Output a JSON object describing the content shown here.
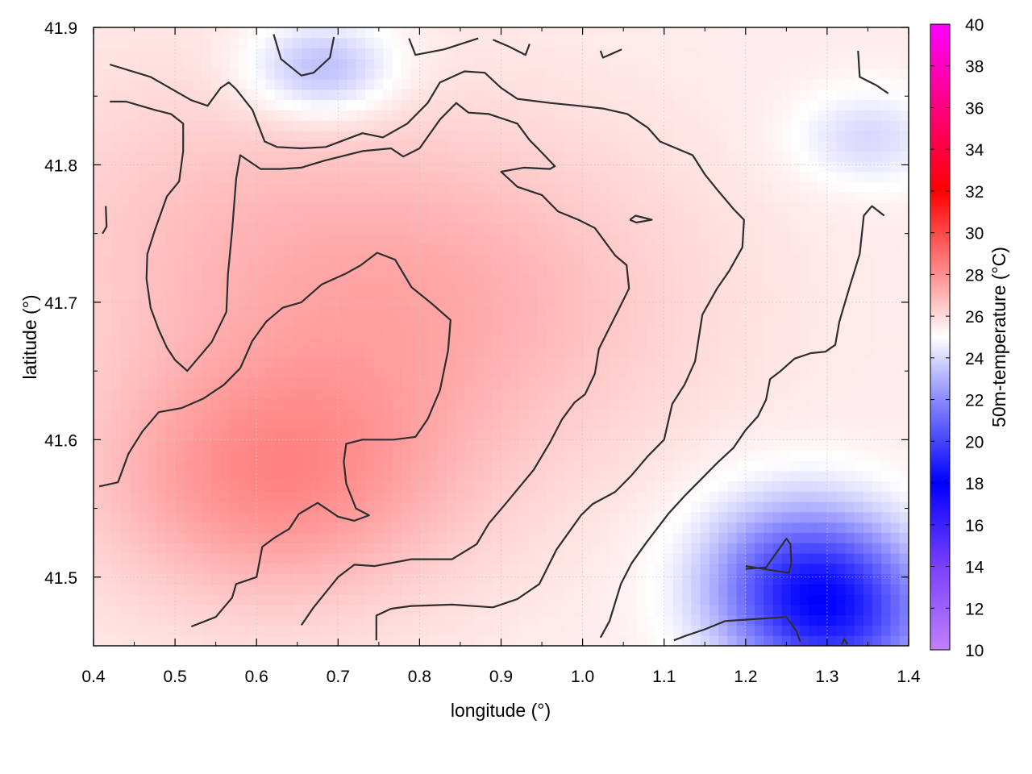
{
  "chart_data": {
    "type": "heatmap",
    "title": "",
    "xlabel": "longitude (°)",
    "ylabel": "latitude (°)",
    "colorbar_label": "50m-temperature (°C)",
    "xlim": [
      0.4,
      1.4
    ],
    "ylim": [
      41.45,
      41.9
    ],
    "x_ticks": [
      "0.4",
      "0.5",
      "0.6",
      "0.7",
      "0.8",
      "0.9",
      "1.0",
      "1.1",
      "1.2",
      "1.3",
      "1.4"
    ],
    "y_ticks": [
      "41.5",
      "41.6",
      "41.7",
      "41.8",
      "41.9"
    ],
    "colorbar_range": [
      10,
      40
    ],
    "colorbar_ticks": [
      "10",
      "12",
      "14",
      "16",
      "18",
      "20",
      "22",
      "24",
      "26",
      "28",
      "30",
      "32",
      "34",
      "36",
      "38",
      "40"
    ],
    "colormap": [
      {
        "value": 10,
        "color": "#c080ff"
      },
      {
        "value": 14,
        "color": "#7a40ff"
      },
      {
        "value": 18,
        "color": "#0000ff"
      },
      {
        "value": 22,
        "color": "#8a8aff"
      },
      {
        "value": 25,
        "color": "#ffffff"
      },
      {
        "value": 28,
        "color": "#ff9090"
      },
      {
        "value": 32,
        "color": "#ff0000"
      },
      {
        "value": 36,
        "color": "#ff0080"
      },
      {
        "value": 40,
        "color": "#ff00ff"
      }
    ],
    "grid": true,
    "field_summary": {
      "background_temperature": 25.5,
      "warm_core": {
        "lon": 0.62,
        "lat": 41.57,
        "temperature": 28.0
      },
      "warm_areas": [
        {
          "lon": 0.85,
          "lat": 41.7,
          "temperature": 27.0
        },
        {
          "lon": 0.55,
          "lat": 41.75,
          "temperature": 26.5
        }
      ],
      "cool_areas": [
        {
          "lon": 1.26,
          "lat": 41.5,
          "temperature": 21.5
        },
        {
          "lon": 1.32,
          "lat": 41.47,
          "temperature": 21.0
        },
        {
          "lon": 0.68,
          "lat": 41.87,
          "temperature": 23.0
        },
        {
          "lon": 1.35,
          "lat": 41.82,
          "temperature": 24.0
        }
      ]
    },
    "contours": [
      [
        [
          0.42,
          41.873
        ],
        [
          0.47,
          41.864
        ],
        [
          0.52,
          41.847
        ],
        [
          0.54,
          41.843
        ],
        [
          0.556,
          41.856
        ],
        [
          0.566,
          41.86
        ],
        [
          0.575,
          41.855
        ],
        [
          0.595,
          41.84
        ],
        [
          0.61,
          41.817
        ],
        [
          0.625,
          41.813
        ],
        [
          0.655,
          41.812
        ],
        [
          0.685,
          41.813
        ],
        [
          0.73,
          41.823
        ],
        [
          0.755,
          41.82
        ],
        [
          0.785,
          41.83
        ],
        [
          0.81,
          41.845
        ],
        [
          0.825,
          41.86
        ],
        [
          0.855,
          41.868
        ],
        [
          0.88,
          41.867
        ],
        [
          0.9,
          41.856
        ],
        [
          0.92,
          41.848
        ],
        [
          0.96,
          41.845
        ],
        [
          0.995,
          41.843
        ],
        [
          1.025,
          41.841
        ],
        [
          1.055,
          41.837
        ],
        [
          1.08,
          41.827
        ],
        [
          1.095,
          41.817
        ],
        [
          1.115,
          41.812
        ],
        [
          1.135,
          41.807
        ],
        [
          1.15,
          41.793
        ],
        [
          1.165,
          41.782
        ],
        [
          1.185,
          41.768
        ],
        [
          1.198,
          41.76
        ],
        [
          1.196,
          41.74
        ],
        [
          1.18,
          41.723
        ],
        [
          1.165,
          41.71
        ],
        [
          1.147,
          41.691
        ],
        [
          1.138,
          41.657
        ],
        [
          1.125,
          41.64
        ],
        [
          1.11,
          41.626
        ],
        [
          1.1,
          41.6
        ],
        [
          1.08,
          41.588
        ],
        [
          1.06,
          41.574
        ],
        [
          1.04,
          41.562
        ],
        [
          1.012,
          41.553
        ],
        [
          0.998,
          41.545
        ],
        [
          0.968,
          41.52
        ],
        [
          0.947,
          41.495
        ],
        [
          0.92,
          41.484
        ],
        [
          0.89,
          41.478
        ],
        [
          0.84,
          41.48
        ],
        [
          0.79,
          41.479
        ],
        [
          0.765,
          41.477
        ],
        [
          0.747,
          41.472
        ],
        [
          0.747,
          41.454
        ]
      ],
      [
        [
          0.407,
          41.566
        ],
        [
          0.43,
          41.569
        ],
        [
          0.443,
          41.59
        ],
        [
          0.46,
          41.606
        ],
        [
          0.48,
          41.62
        ],
        [
          0.508,
          41.623
        ],
        [
          0.535,
          41.63
        ],
        [
          0.56,
          41.64
        ],
        [
          0.58,
          41.652
        ],
        [
          0.595,
          41.672
        ],
        [
          0.612,
          41.686
        ],
        [
          0.632,
          41.696
        ],
        [
          0.655,
          41.7
        ],
        [
          0.68,
          41.713
        ],
        [
          0.71,
          41.721
        ],
        [
          0.728,
          41.727
        ],
        [
          0.748,
          41.736
        ],
        [
          0.77,
          41.731
        ],
        [
          0.79,
          41.711
        ],
        [
          0.815,
          41.699
        ],
        [
          0.838,
          41.687
        ],
        [
          0.835,
          41.665
        ],
        [
          0.825,
          41.636
        ],
        [
          0.81,
          41.615
        ],
        [
          0.795,
          41.602
        ],
        [
          0.768,
          41.6
        ],
        [
          0.73,
          41.6
        ],
        [
          0.71,
          41.597
        ],
        [
          0.707,
          41.584
        ],
        [
          0.71,
          41.568
        ],
        [
          0.722,
          41.55
        ],
        [
          0.738,
          41.545
        ],
        [
          0.72,
          41.541
        ],
        [
          0.7,
          41.544
        ],
        [
          0.675,
          41.554
        ],
        [
          0.652,
          41.546
        ],
        [
          0.64,
          41.535
        ],
        [
          0.623,
          41.529
        ],
        [
          0.607,
          41.522
        ],
        [
          0.6,
          41.5
        ],
        [
          0.575,
          41.495
        ],
        [
          0.57,
          41.485
        ],
        [
          0.55,
          41.471
        ],
        [
          0.52,
          41.464
        ]
      ],
      [
        [
          0.655,
          41.465
        ],
        [
          0.67,
          41.478
        ],
        [
          0.7,
          41.5
        ],
        [
          0.72,
          41.509
        ],
        [
          0.745,
          41.508
        ],
        [
          0.79,
          41.513
        ],
        [
          0.84,
          41.513
        ],
        [
          0.87,
          41.524
        ],
        [
          0.885,
          41.539
        ],
        [
          0.905,
          41.553
        ],
        [
          0.94,
          41.578
        ],
        [
          0.96,
          41.598
        ],
        [
          0.975,
          41.615
        ],
        [
          0.99,
          41.627
        ],
        [
          1.003,
          41.633
        ],
        [
          1.015,
          41.648
        ],
        [
          1.02,
          41.666
        ],
        [
          1.047,
          41.698
        ],
        [
          1.057,
          41.71
        ],
        [
          1.054,
          41.727
        ],
        [
          1.04,
          41.734
        ],
        [
          1.015,
          41.754
        ],
        [
          0.995,
          41.76
        ],
        [
          0.97,
          41.766
        ],
        [
          0.95,
          41.778
        ],
        [
          0.92,
          41.784
        ],
        [
          0.9,
          41.795
        ],
        [
          0.928,
          41.798
        ],
        [
          0.96,
          41.797
        ],
        [
          0.966,
          41.799
        ],
        [
          0.945,
          41.812
        ],
        [
          0.935,
          41.818
        ],
        [
          0.92,
          41.83
        ],
        [
          0.885,
          41.837
        ],
        [
          0.86,
          41.838
        ],
        [
          0.845,
          41.845
        ],
        [
          0.825,
          41.833
        ],
        [
          0.8,
          41.812
        ],
        [
          0.78,
          41.806
        ],
        [
          0.765,
          41.812
        ],
        [
          0.73,
          41.81
        ],
        [
          0.683,
          41.803
        ],
        [
          0.655,
          41.798
        ],
        [
          0.63,
          41.797
        ],
        [
          0.605,
          41.797
        ],
        [
          0.58,
          41.807
        ],
        [
          0.575,
          41.79
        ],
        [
          0.57,
          41.752
        ],
        [
          0.565,
          41.721
        ],
        [
          0.563,
          41.693
        ],
        [
          0.545,
          41.671
        ],
        [
          0.515,
          41.65
        ],
        [
          0.5,
          41.658
        ],
        [
          0.49,
          41.667
        ],
        [
          0.48,
          41.68
        ],
        [
          0.47,
          41.696
        ],
        [
          0.465,
          41.717
        ],
        [
          0.466,
          41.735
        ],
        [
          0.475,
          41.752
        ],
        [
          0.49,
          41.777
        ],
        [
          0.505,
          41.788
        ],
        [
          0.51,
          41.81
        ],
        [
          0.51,
          41.83
        ],
        [
          0.495,
          41.837
        ],
        [
          0.475,
          41.84
        ],
        [
          0.44,
          41.846
        ],
        [
          0.42,
          41.846
        ]
      ],
      [
        [
          1.022,
          41.456
        ],
        [
          1.033,
          41.468
        ],
        [
          1.047,
          41.495
        ],
        [
          1.06,
          41.51
        ],
        [
          1.078,
          41.525
        ],
        [
          1.105,
          41.546
        ],
        [
          1.125,
          41.559
        ],
        [
          1.145,
          41.571
        ],
        [
          1.165,
          41.583
        ],
        [
          1.185,
          41.594
        ],
        [
          1.2,
          41.607
        ],
        [
          1.215,
          41.617
        ],
        [
          1.225,
          41.629
        ],
        [
          1.23,
          41.644
        ],
        [
          1.243,
          41.65
        ],
        [
          1.26,
          41.659
        ],
        [
          1.28,
          41.663
        ],
        [
          1.298,
          41.664
        ],
        [
          1.31,
          41.669
        ],
        [
          1.315,
          41.686
        ],
        [
          1.328,
          41.712
        ],
        [
          1.34,
          41.735
        ],
        [
          1.345,
          41.763
        ],
        [
          1.355,
          41.77
        ],
        [
          1.37,
          41.763
        ]
      ],
      [
        [
          0.621,
          41.895
        ],
        [
          0.63,
          41.877
        ],
        [
          0.655,
          41.865
        ],
        [
          0.67,
          41.867
        ],
        [
          0.69,
          41.878
        ],
        [
          0.695,
          41.893
        ]
      ],
      [
        [
          0.787,
          41.892
        ],
        [
          0.795,
          41.88
        ],
        [
          0.83,
          41.884
        ],
        [
          0.872,
          41.892
        ]
      ],
      [
        [
          0.89,
          41.891
        ],
        [
          0.91,
          41.886
        ],
        [
          0.93,
          41.88
        ],
        [
          0.935,
          41.888
        ]
      ],
      [
        [
          1.022,
          41.883
        ],
        [
          1.025,
          41.878
        ],
        [
          1.048,
          41.884
        ]
      ],
      [
        [
          1.338,
          41.883
        ],
        [
          1.34,
          41.864
        ],
        [
          1.36,
          41.858
        ],
        [
          1.375,
          41.852
        ]
      ],
      [
        [
          0.415,
          41.77
        ],
        [
          0.416,
          41.755
        ],
        [
          0.411,
          41.75
        ]
      ],
      [
        [
          1.058,
          41.76
        ],
        [
          1.065,
          41.763
        ],
        [
          1.085,
          41.76
        ],
        [
          1.066,
          41.758
        ],
        [
          1.058,
          41.76
        ]
      ],
      [
        [
          1.2,
          41.506
        ],
        [
          1.225,
          41.507
        ],
        [
          1.25,
          41.528
        ],
        [
          1.255,
          41.524
        ],
        [
          1.256,
          41.51
        ],
        [
          1.253,
          41.503
        ],
        [
          1.2,
          41.508
        ]
      ],
      [
        [
          1.112,
          41.454
        ],
        [
          1.125,
          41.457
        ],
        [
          1.15,
          41.462
        ],
        [
          1.175,
          41.468
        ],
        [
          1.2,
          41.469
        ],
        [
          1.25,
          41.471
        ],
        [
          1.262,
          41.461
        ],
        [
          1.267,
          41.453
        ]
      ],
      [
        [
          1.318,
          41.451
        ],
        [
          1.321,
          41.455
        ],
        [
          1.325,
          41.451
        ]
      ]
    ]
  }
}
